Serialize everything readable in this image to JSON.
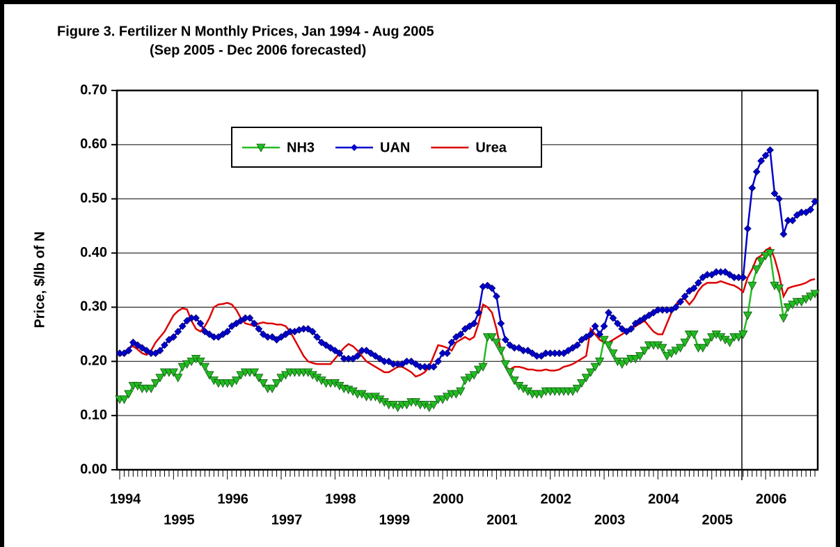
{
  "chart_data": {
    "type": "line",
    "title": "Figure 3.  Fertilizer N Monthly Prices, Jan 1994 - Aug 2005",
    "subtitle": "(Sep 2005 - Dec 2006 forecasted)",
    "y_label": "Price, $/lb of N",
    "categories": [
      "1994",
      null,
      null,
      null,
      null,
      null,
      null,
      null,
      null,
      null,
      null,
      null,
      "1995",
      null,
      null,
      null,
      null,
      null,
      null,
      null,
      null,
      null,
      null,
      null,
      "1996",
      null,
      null,
      null,
      null,
      null,
      null,
      null,
      null,
      null,
      null,
      null,
      "1997",
      null,
      null,
      null,
      null,
      null,
      null,
      null,
      null,
      null,
      null,
      null,
      "1998",
      null,
      null,
      null,
      null,
      null,
      null,
      null,
      null,
      null,
      null,
      null,
      "1999",
      null,
      null,
      null,
      null,
      null,
      null,
      null,
      null,
      null,
      null,
      null,
      "2000",
      null,
      null,
      null,
      null,
      null,
      null,
      null,
      null,
      null,
      null,
      null,
      "2001",
      null,
      null,
      null,
      null,
      null,
      null,
      null,
      null,
      null,
      null,
      null,
      "2002",
      null,
      null,
      null,
      null,
      null,
      null,
      null,
      null,
      null,
      null,
      null,
      "2003",
      null,
      null,
      null,
      null,
      null,
      null,
      null,
      null,
      null,
      null,
      null,
      "2004",
      null,
      null,
      null,
      null,
      null,
      null,
      null,
      null,
      null,
      null,
      null,
      "2005",
      null,
      null,
      null,
      null,
      null,
      null,
      null,
      null,
      null,
      null,
      null,
      "2006",
      null,
      null,
      null,
      null,
      null,
      null,
      null,
      null,
      null,
      null,
      null
    ],
    "series": [
      {
        "name": "NH3",
        "color": "#22bb22",
        "marker": "triangle-down",
        "values": [
          0.13,
          0.13,
          0.14,
          0.155,
          0.155,
          0.15,
          0.15,
          0.15,
          0.16,
          0.17,
          0.18,
          0.18,
          0.18,
          0.17,
          0.19,
          0.195,
          0.2,
          0.205,
          0.2,
          0.19,
          0.175,
          0.165,
          0.16,
          0.16,
          0.16,
          0.16,
          0.165,
          0.175,
          0.18,
          0.18,
          0.18,
          0.17,
          0.16,
          0.15,
          0.15,
          0.16,
          0.17,
          0.175,
          0.18,
          0.18,
          0.18,
          0.18,
          0.18,
          0.175,
          0.17,
          0.165,
          0.16,
          0.16,
          0.16,
          0.155,
          0.15,
          0.148,
          0.145,
          0.14,
          0.14,
          0.135,
          0.135,
          0.135,
          0.13,
          0.125,
          0.12,
          0.12,
          0.115,
          0.12,
          0.12,
          0.125,
          0.125,
          0.12,
          0.12,
          0.115,
          0.12,
          0.13,
          0.13,
          0.135,
          0.14,
          0.14,
          0.145,
          0.165,
          0.17,
          0.175,
          0.185,
          0.19,
          0.245,
          0.245,
          0.235,
          0.22,
          0.195,
          0.18,
          0.165,
          0.155,
          0.15,
          0.145,
          0.14,
          0.14,
          0.14,
          0.145,
          0.145,
          0.145,
          0.145,
          0.145,
          0.145,
          0.145,
          0.15,
          0.16,
          0.17,
          0.18,
          0.19,
          0.2,
          0.24,
          0.23,
          0.215,
          0.2,
          0.195,
          0.2,
          0.205,
          0.205,
          0.21,
          0.22,
          0.23,
          0.23,
          0.23,
          0.225,
          0.21,
          0.215,
          0.22,
          0.225,
          0.235,
          0.25,
          0.25,
          0.225,
          0.225,
          0.235,
          0.245,
          0.25,
          0.245,
          0.24,
          0.235,
          0.245,
          0.245,
          0.25,
          0.285,
          0.34,
          0.37,
          0.385,
          0.395,
          0.4,
          0.34,
          0.335,
          0.28,
          0.3,
          0.305,
          0.31,
          0.31,
          0.315,
          0.32,
          0.325
        ]
      },
      {
        "name": "UAN",
        "color": "#0000cc",
        "marker": "diamond",
        "values": [
          0.215,
          0.215,
          0.22,
          0.235,
          0.23,
          0.225,
          0.22,
          0.215,
          0.215,
          0.22,
          0.23,
          0.24,
          0.245,
          0.255,
          0.265,
          0.275,
          0.28,
          0.28,
          0.27,
          0.255,
          0.25,
          0.245,
          0.245,
          0.25,
          0.255,
          0.265,
          0.27,
          0.275,
          0.28,
          0.28,
          0.27,
          0.26,
          0.25,
          0.245,
          0.245,
          0.24,
          0.245,
          0.25,
          0.255,
          0.255,
          0.258,
          0.26,
          0.26,
          0.255,
          0.245,
          0.235,
          0.23,
          0.225,
          0.22,
          0.215,
          0.205,
          0.205,
          0.205,
          0.21,
          0.22,
          0.22,
          0.215,
          0.21,
          0.205,
          0.2,
          0.2,
          0.195,
          0.195,
          0.195,
          0.2,
          0.2,
          0.195,
          0.19,
          0.19,
          0.19,
          0.19,
          0.2,
          0.215,
          0.215,
          0.235,
          0.245,
          0.25,
          0.26,
          0.265,
          0.27,
          0.29,
          0.338,
          0.34,
          0.335,
          0.32,
          0.27,
          0.24,
          0.23,
          0.225,
          0.225,
          0.22,
          0.22,
          0.215,
          0.21,
          0.21,
          0.215,
          0.215,
          0.215,
          0.215,
          0.215,
          0.22,
          0.225,
          0.23,
          0.24,
          0.245,
          0.25,
          0.265,
          0.25,
          0.265,
          0.29,
          0.28,
          0.27,
          0.26,
          0.255,
          0.26,
          0.27,
          0.275,
          0.28,
          0.285,
          0.29,
          0.295,
          0.295,
          0.295,
          0.295,
          0.3,
          0.31,
          0.32,
          0.33,
          0.335,
          0.345,
          0.355,
          0.36,
          0.36,
          0.365,
          0.365,
          0.365,
          0.36,
          0.355,
          0.355,
          0.355,
          0.445,
          0.52,
          0.55,
          0.57,
          0.58,
          0.59,
          0.51,
          0.5,
          0.435,
          0.46,
          0.46,
          0.47,
          0.475,
          0.475,
          0.48,
          0.495
        ]
      },
      {
        "name": "Urea",
        "color": "#dd0000",
        "marker": "none",
        "values": [
          0.21,
          0.215,
          0.225,
          0.228,
          0.222,
          0.215,
          0.212,
          0.22,
          0.235,
          0.245,
          0.255,
          0.27,
          0.285,
          0.293,
          0.298,
          0.296,
          0.275,
          0.26,
          0.255,
          0.265,
          0.28,
          0.3,
          0.305,
          0.306,
          0.308,
          0.305,
          0.295,
          0.28,
          0.27,
          0.268,
          0.265,
          0.27,
          0.272,
          0.27,
          0.27,
          0.268,
          0.268,
          0.265,
          0.255,
          0.24,
          0.225,
          0.21,
          0.2,
          0.197,
          0.195,
          0.195,
          0.195,
          0.195,
          0.205,
          0.215,
          0.225,
          0.232,
          0.228,
          0.22,
          0.21,
          0.2,
          0.195,
          0.19,
          0.185,
          0.18,
          0.18,
          0.185,
          0.19,
          0.19,
          0.185,
          0.18,
          0.172,
          0.175,
          0.18,
          0.19,
          0.21,
          0.23,
          0.228,
          0.225,
          0.22,
          0.235,
          0.24,
          0.245,
          0.24,
          0.245,
          0.27,
          0.305,
          0.3,
          0.29,
          0.26,
          0.22,
          0.19,
          0.185,
          0.19,
          0.19,
          0.188,
          0.185,
          0.185,
          0.183,
          0.183,
          0.185,
          0.183,
          0.183,
          0.185,
          0.19,
          0.192,
          0.195,
          0.2,
          0.205,
          0.21,
          0.26,
          0.25,
          0.24,
          0.235,
          0.235,
          0.24,
          0.245,
          0.25,
          0.255,
          0.26,
          0.265,
          0.27,
          0.275,
          0.265,
          0.255,
          0.25,
          0.25,
          0.27,
          0.29,
          0.305,
          0.315,
          0.315,
          0.305,
          0.315,
          0.33,
          0.34,
          0.345,
          0.345,
          0.345,
          0.348,
          0.345,
          0.342,
          0.34,
          0.335,
          0.328,
          0.355,
          0.37,
          0.39,
          0.395,
          0.405,
          0.41,
          0.39,
          0.36,
          0.32,
          0.335,
          0.338,
          0.34,
          0.342,
          0.345,
          0.35,
          0.352
        ]
      }
    ],
    "ylim": [
      0,
      0.7
    ],
    "yticks": [
      {
        "value": 0,
        "label": "0.00"
      },
      {
        "value": 0.1,
        "label": "0.10"
      },
      {
        "value": 0.2,
        "label": "0.20"
      },
      {
        "value": 0.3,
        "label": "0.30"
      },
      {
        "value": 0.4,
        "label": "0.40"
      },
      {
        "value": 0.5,
        "label": "0.50"
      },
      {
        "value": 0.6,
        "label": "0.60"
      },
      {
        "value": 0.7,
        "label": "0.70"
      }
    ],
    "grid": true,
    "legend": "top-left"
  }
}
